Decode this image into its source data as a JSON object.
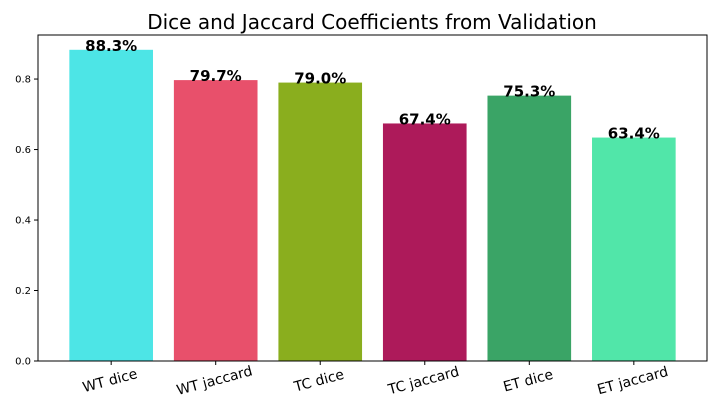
{
  "chart_data": {
    "type": "bar",
    "title": "Dice and Jaccard Coefficients from Validation",
    "xlabel": "",
    "ylabel": "",
    "ylim": [
      0,
      0.925
    ],
    "yticks": [
      "0.0",
      "0.2",
      "0.4",
      "0.6",
      "0.8"
    ],
    "grid": false,
    "legend": "none",
    "categories": [
      "WT dice",
      "WT jaccard",
      "TC dice",
      "TC jaccard",
      "ET dice",
      "ET jaccard"
    ],
    "values": [
      0.883,
      0.797,
      0.79,
      0.674,
      0.753,
      0.634
    ],
    "data_labels": [
      "88.3%",
      "79.7%",
      "79.0%",
      "67.4%",
      "75.3%",
      "63.4%"
    ],
    "colors": [
      "#4de5e6",
      "#e8506b",
      "#8aae1e",
      "#ad1a5a",
      "#3aa466",
      "#51e6a9"
    ]
  }
}
